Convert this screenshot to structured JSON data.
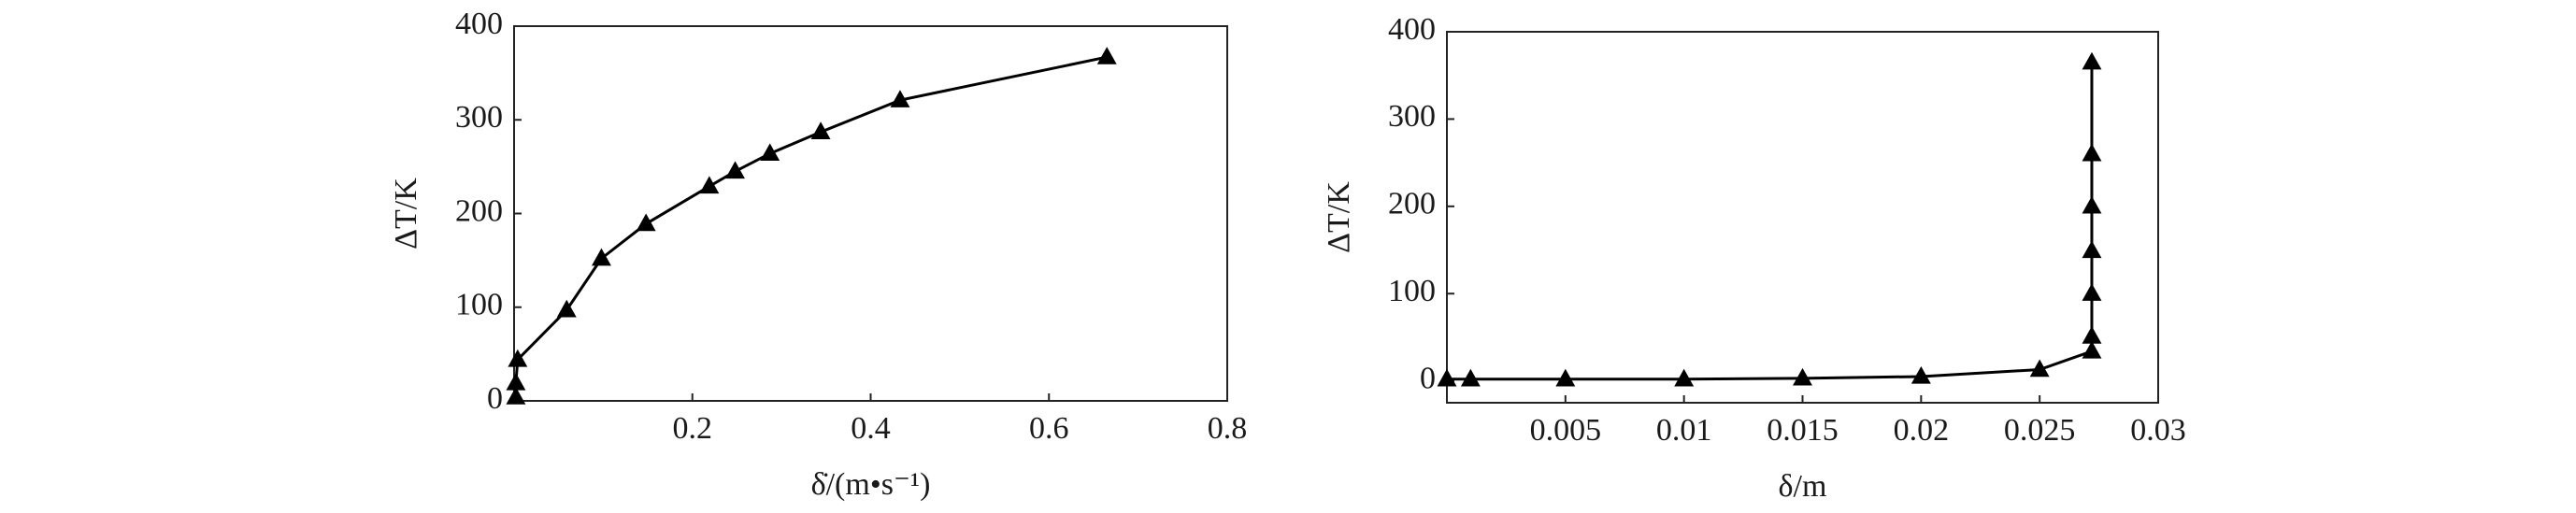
{
  "chart_data": [
    {
      "type": "line",
      "marker": "triangle",
      "color": "#000000",
      "xlabel": "δ̇/(m•s⁻¹)",
      "ylabel": "ΔT/K",
      "x": [
        0.002,
        0.002,
        0.004,
        0.059,
        0.098,
        0.148,
        0.219,
        0.248,
        0.287,
        0.344,
        0.433,
        0.665
      ],
      "values": [
        4,
        19,
        44,
        97,
        152,
        189,
        229,
        245,
        264,
        287,
        321,
        367
      ],
      "xlim": [
        0,
        0.8
      ],
      "ylim": [
        0,
        400
      ],
      "xticks": [
        0.2,
        0.4,
        0.6,
        0.8
      ],
      "yticks": [
        0,
        100,
        200,
        300,
        400
      ]
    },
    {
      "type": "line",
      "marker": "triangle",
      "color": "#000000",
      "xlabel": "δ/m",
      "ylabel": "ΔT/K",
      "x": [
        0,
        0.001,
        0.005,
        0.01,
        0.015,
        0.02,
        0.025,
        0.0272,
        0.0272,
        0.0272,
        0.0272,
        0.0272,
        0.0272,
        0.0272
      ],
      "values": [
        2,
        2,
        2,
        2,
        3,
        5,
        13,
        34,
        51,
        100,
        149,
        200,
        260,
        365
      ],
      "xlim": [
        0,
        0.03
      ],
      "ylim": [
        -25,
        400
      ],
      "xticks": [
        0.005,
        0.01,
        0.015,
        0.02,
        0.025,
        0.03
      ],
      "yticks": [
        0,
        100,
        200,
        300,
        400
      ]
    }
  ]
}
